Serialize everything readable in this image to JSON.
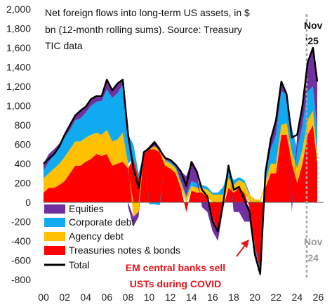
{
  "chart_data": {
    "type": "area",
    "title_lines": [
      "Net foreign flows into long-term US assets, in $",
      "bn (12-month rolling sums). Source:  Treasury",
      "TIC data"
    ],
    "xlabel": "",
    "ylabel": "",
    "ylim": [
      -800,
      2000
    ],
    "xlim": [
      2000,
      2026.5
    ],
    "y_ticks": [
      2000,
      1800,
      1600,
      1400,
      1200,
      1000,
      800,
      600,
      400,
      200,
      0,
      -200,
      -400,
      -600,
      -800
    ],
    "y_tick_labels": [
      "2,000",
      "1,800",
      "1,600",
      "1,400",
      "1,200",
      "1,000",
      "800",
      "600",
      "400",
      "200",
      "0",
      "-200",
      "-400",
      "-600",
      "-800"
    ],
    "x_ticks": [
      2000,
      2002,
      2004,
      2006,
      2008,
      2010,
      2012,
      2014,
      2016,
      2018,
      2020,
      2022,
      2024,
      2026
    ],
    "x_tick_labels": [
      "00",
      "02",
      "04",
      "06",
      "08",
      "10",
      "12",
      "14",
      "16",
      "18",
      "20",
      "22",
      "24",
      "26"
    ],
    "grid": false,
    "legend_position": "middle-left",
    "x": [
      2000.0,
      2000.5,
      2001.0,
      2001.5,
      2002.0,
      2002.5,
      2003.0,
      2003.5,
      2004.0,
      2004.5,
      2005.0,
      2005.5,
      2006.0,
      2006.5,
      2007.0,
      2007.5,
      2008.0,
      2008.5,
      2009.0,
      2009.5,
      2010.0,
      2010.5,
      2011.0,
      2011.5,
      2012.0,
      2012.5,
      2013.0,
      2013.5,
      2014.0,
      2014.5,
      2015.0,
      2015.5,
      2016.0,
      2016.5,
      2017.0,
      2017.5,
      2018.0,
      2018.5,
      2019.0,
      2019.5,
      2020.0,
      2020.5,
      2021.0,
      2021.5,
      2022.0,
      2022.5,
      2023.0,
      2023.5,
      2024.0,
      2024.5,
      2025.0,
      2025.5,
      2025.9
    ],
    "series": [
      {
        "name": "Treasuries notes & bonds",
        "color": "#ff0000",
        "type": "area",
        "values": [
          100,
          150,
          150,
          180,
          220,
          300,
          380,
          380,
          420,
          450,
          500,
          480,
          500,
          380,
          400,
          420,
          350,
          450,
          250,
          500,
          550,
          550,
          520,
          380,
          350,
          300,
          150,
          -100,
          120,
          100,
          100,
          50,
          -150,
          -300,
          -50,
          150,
          100,
          150,
          100,
          -50,
          -450,
          -700,
          150,
          300,
          300,
          700,
          700,
          400,
          200,
          400,
          700,
          800,
          400
        ]
      },
      {
        "name": "Agency debt",
        "color": "#ffc000",
        "type": "area",
        "values": [
          150,
          150,
          200,
          220,
          250,
          250,
          250,
          250,
          250,
          250,
          220,
          220,
          250,
          250,
          250,
          300,
          50,
          -150,
          -100,
          0,
          0,
          30,
          30,
          50,
          50,
          50,
          50,
          50,
          50,
          50,
          50,
          80,
          80,
          80,
          80,
          100,
          80,
          80,
          100,
          80,
          30,
          30,
          60,
          100,
          100,
          100,
          120,
          120,
          150,
          150,
          150,
          150,
          100
        ]
      },
      {
        "name": "Corporate debt",
        "color": "#10aaf0",
        "type": "area",
        "values": [
          80,
          120,
          150,
          180,
          200,
          200,
          220,
          240,
          260,
          300,
          320,
          350,
          420,
          450,
          480,
          500,
          300,
          150,
          50,
          0,
          -20,
          -20,
          -30,
          10,
          20,
          20,
          20,
          20,
          50,
          50,
          30,
          30,
          20,
          20,
          80,
          80,
          50,
          30,
          30,
          20,
          -20,
          -20,
          50,
          150,
          300,
          350,
          300,
          250,
          200,
          250,
          300,
          250,
          250
        ]
      },
      {
        "name": "Equities",
        "color": "#7030a0",
        "type": "area",
        "values": [
          70,
          80,
          50,
          30,
          30,
          50,
          50,
          80,
          60,
          70,
          60,
          50,
          100,
          80,
          100,
          50,
          -50,
          -100,
          -50,
          20,
          30,
          60,
          20,
          20,
          20,
          20,
          100,
          200,
          200,
          120,
          -50,
          -100,
          -150,
          -100,
          -20,
          50,
          -100,
          -100,
          -200,
          -150,
          -100,
          -50,
          50,
          100,
          150,
          100,
          0,
          -100,
          150,
          200,
          300,
          400,
          500
        ]
      },
      {
        "name": "Total",
        "color": "#000000",
        "type": "line",
        "values": [
          400,
          450,
          500,
          580,
          700,
          800,
          900,
          950,
          990,
          1070,
          1100,
          1100,
          1270,
          1160,
          1230,
          1270,
          700,
          350,
          150,
          520,
          560,
          620,
          540,
          460,
          440,
          390,
          320,
          170,
          420,
          320,
          130,
          60,
          -200,
          -300,
          -10,
          380,
          130,
          160,
          30,
          -100,
          -540,
          -740,
          310,
          650,
          850,
          1250,
          1120,
          670,
          700,
          1000,
          1450,
          1600,
          1250
        ]
      }
    ]
  },
  "annotations": {
    "covid_text_line1": "EM central banks sell",
    "covid_text_line2": "USTs during COVID",
    "now_line1": "Nov",
    "now_line2": "'25",
    "prev_line1": "Nov",
    "prev_line2": "'24"
  },
  "colors": {
    "annotation_red": "#e8141c",
    "dashed_line": "#a6a6a6",
    "prev_label": "#9a9a9a"
  }
}
